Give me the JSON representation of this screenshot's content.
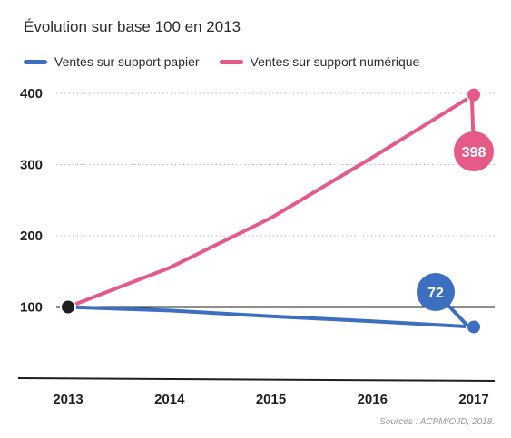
{
  "chart_data": {
    "type": "line",
    "title": "Évolution sur base 100 en 2013",
    "x": [
      "2013",
      "2014",
      "2015",
      "2016",
      "2017"
    ],
    "ylim": [
      0,
      400
    ],
    "yticks": [
      "100",
      "200",
      "300",
      "400"
    ],
    "grid": "dotted horizontal",
    "legend_placement": "top-left",
    "series": [
      {
        "name": "Ventes sur support papier",
        "color": "#3d6fc0",
        "values": [
          100,
          95,
          87,
          80,
          72
        ],
        "end_label": "72"
      },
      {
        "name": "Ventes sur support numérique",
        "color": "#e65a87",
        "values": [
          100,
          155,
          225,
          310,
          398
        ],
        "end_label": "398"
      }
    ],
    "baseline_value": 100,
    "source": "Sources : ACPM/OJD, 2018."
  }
}
